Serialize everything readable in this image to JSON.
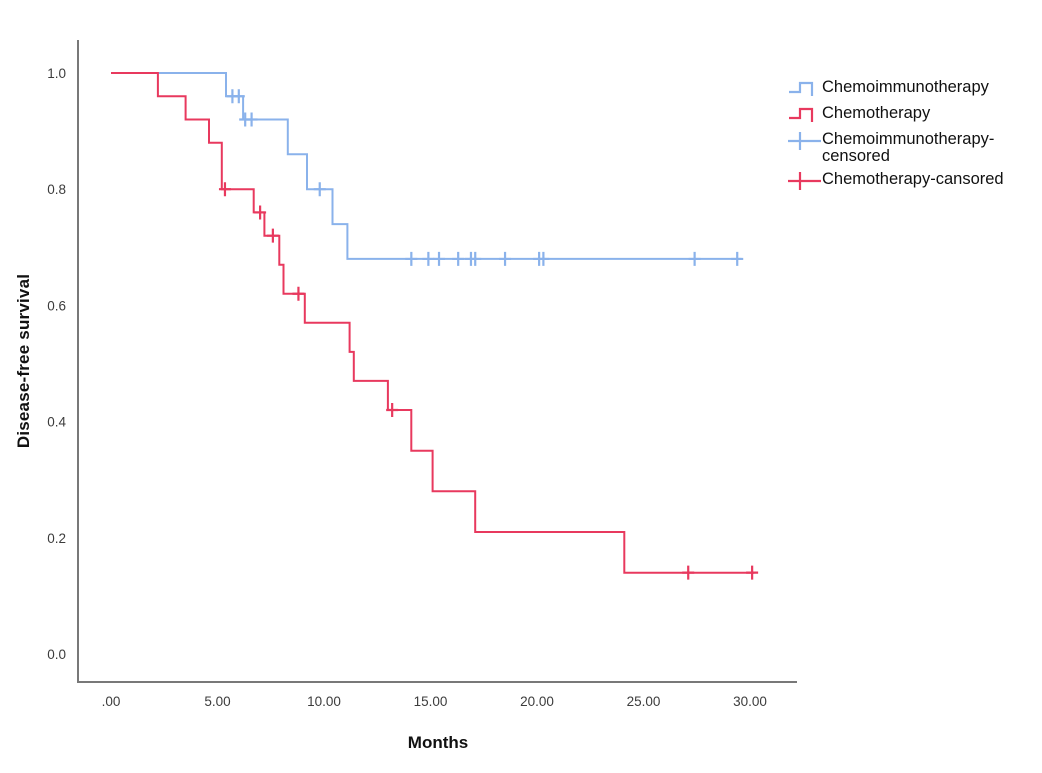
{
  "chart_data": {
    "type": "line",
    "subtype": "kaplan-meier-step-survival",
    "title": "",
    "xlabel": "Months",
    "ylabel": "Disease-free survival",
    "grid": false,
    "legend_position": "top-right-outside",
    "xlim": [
      0,
      30
    ],
    "ylim": [
      0.0,
      1.0
    ],
    "x_ticks": {
      "values": [
        0,
        5,
        10,
        15,
        20,
        25,
        30
      ],
      "labels": [
        ".00",
        "5.00",
        "10.00",
        "15.00",
        "20.00",
        "25.00",
        "30.00"
      ]
    },
    "y_ticks": {
      "values": [
        0.0,
        0.2,
        0.4,
        0.6,
        0.8,
        1.0
      ],
      "labels": [
        "0.0",
        "0.2",
        "0.4",
        "0.6",
        "0.8",
        "1.0"
      ]
    },
    "axis_color": "#787878",
    "tick_text_color": "#3c3c3c",
    "series": [
      {
        "name": "Chemoimmunotherapy",
        "color": "#8AB2EB",
        "step_vertices": [
          [
            0,
            1.0
          ],
          [
            5.4,
            1.0
          ],
          [
            5.4,
            0.96
          ],
          [
            6.2,
            0.96
          ],
          [
            6.2,
            0.92
          ],
          [
            8.3,
            0.92
          ],
          [
            8.3,
            0.86
          ],
          [
            9.2,
            0.86
          ],
          [
            9.2,
            0.8
          ],
          [
            10.4,
            0.8
          ],
          [
            10.4,
            0.74
          ],
          [
            11.1,
            0.74
          ],
          [
            11.1,
            0.68
          ],
          [
            29.6,
            0.68
          ]
        ],
        "censored_points": [
          [
            5.7,
            0.96
          ],
          [
            6.0,
            0.96
          ],
          [
            6.3,
            0.92
          ],
          [
            6.6,
            0.92
          ],
          [
            9.8,
            0.8
          ],
          [
            14.1,
            0.68
          ],
          [
            14.9,
            0.68
          ],
          [
            15.4,
            0.68
          ],
          [
            16.3,
            0.68
          ],
          [
            16.9,
            0.68
          ],
          [
            17.1,
            0.68
          ],
          [
            18.5,
            0.68
          ],
          [
            20.1,
            0.68
          ],
          [
            20.3,
            0.68
          ],
          [
            27.4,
            0.68
          ],
          [
            29.4,
            0.68
          ]
        ]
      },
      {
        "name": "Chemotherapy",
        "color": "#E8395E",
        "step_vertices": [
          [
            0,
            1.0
          ],
          [
            2.2,
            1.0
          ],
          [
            2.2,
            0.96
          ],
          [
            3.5,
            0.96
          ],
          [
            3.5,
            0.92
          ],
          [
            4.6,
            0.92
          ],
          [
            4.6,
            0.88
          ],
          [
            5.2,
            0.88
          ],
          [
            5.2,
            0.8
          ],
          [
            6.7,
            0.8
          ],
          [
            6.7,
            0.76
          ],
          [
            7.2,
            0.76
          ],
          [
            7.2,
            0.72
          ],
          [
            7.9,
            0.72
          ],
          [
            7.9,
            0.67
          ],
          [
            8.1,
            0.67
          ],
          [
            8.1,
            0.62
          ],
          [
            9.1,
            0.62
          ],
          [
            9.1,
            0.57
          ],
          [
            11.2,
            0.57
          ],
          [
            11.2,
            0.52
          ],
          [
            11.4,
            0.52
          ],
          [
            11.4,
            0.47
          ],
          [
            13.0,
            0.47
          ],
          [
            13.0,
            0.42
          ],
          [
            14.1,
            0.42
          ],
          [
            14.1,
            0.35
          ],
          [
            15.1,
            0.35
          ],
          [
            15.1,
            0.28
          ],
          [
            17.1,
            0.28
          ],
          [
            17.1,
            0.21
          ],
          [
            24.1,
            0.21
          ],
          [
            24.1,
            0.14
          ],
          [
            30.2,
            0.14
          ]
        ],
        "censored_points": [
          [
            5.35,
            0.8
          ],
          [
            7.0,
            0.76
          ],
          [
            7.6,
            0.72
          ],
          [
            8.8,
            0.62
          ],
          [
            13.2,
            0.42
          ],
          [
            27.1,
            0.14
          ],
          [
            30.1,
            0.14
          ]
        ]
      }
    ],
    "legend": [
      {
        "label": "Chemoimmunotherapy",
        "glyph": "step",
        "color": "#8AB2EB"
      },
      {
        "label": "Chemotherapy",
        "glyph": "step",
        "color": "#E8395E"
      },
      {
        "label": "Chemoimmunotherapy-censored",
        "glyph": "censor",
        "color": "#8AB2EB"
      },
      {
        "label": "Chemotherapy-cansored",
        "glyph": "censor",
        "color": "#E8395E"
      }
    ]
  }
}
